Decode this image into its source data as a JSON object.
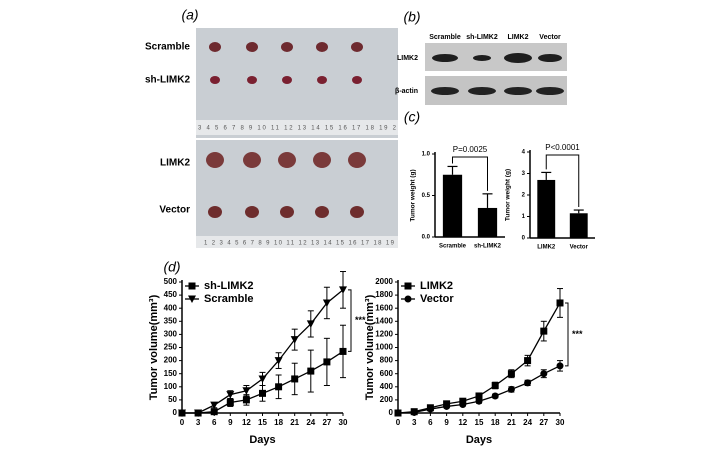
{
  "figure": {
    "panel_labels": [
      "(a)",
      "(b)",
      "(c)",
      "(d)"
    ],
    "photo_rows": [
      "Scramble",
      "sh-LIMK2",
      "LIMK2",
      "Vector"
    ],
    "rulers": [
      "3 4 5 6 7 8 9 10 11 12 13 14 15 16 17 18 19 2",
      "1 2 3 4 5 6 7 8 9 10 11 12 13 14 15 16 17 18 19"
    ],
    "blot_lanes": [
      "Scramble",
      "sh-LIMK2",
      "LIMK2",
      "Vector"
    ],
    "blot_rows": [
      "LIMK2",
      "β-actin"
    ]
  },
  "chart_data": [
    {
      "type": "bar",
      "ylabel": "Tumor weight (g)",
      "categories": [
        "Scramble",
        "sh-LIMK2"
      ],
      "values": [
        0.75,
        0.35
      ],
      "errors": [
        0.1,
        0.17
      ],
      "color": "#000000",
      "ylim": [
        0,
        1
      ],
      "yticks": [
        {
          "value": 0,
          "label": "0.0"
        },
        {
          "value": 0.5,
          "label": "0.5"
        },
        {
          "value": 1,
          "label": "1.0"
        }
      ],
      "annotation": "P=0.0025"
    },
    {
      "type": "bar",
      "ylabel": "Tumor weight (g)",
      "categories": [
        "LIMK2",
        "Vector"
      ],
      "values": [
        2.7,
        1.15
      ],
      "errors": [
        0.35,
        0.15
      ],
      "color": "#000000",
      "ylim": [
        0,
        4
      ],
      "yticks": [
        0,
        1,
        2,
        3,
        4
      ],
      "annotation": "P<0.0001"
    },
    {
      "type": "line",
      "xlabel": "Days",
      "ylabel": "Tumor volume(mm³)",
      "x": [
        0,
        3,
        6,
        9,
        12,
        15,
        18,
        21,
        24,
        27,
        30
      ],
      "xlim": [
        0,
        30
      ],
      "xticks": [
        0,
        3,
        6,
        9,
        12,
        15,
        18,
        21,
        24,
        27,
        30
      ],
      "ylim": [
        0,
        500
      ],
      "yticks": [
        0,
        50,
        100,
        150,
        200,
        250,
        300,
        350,
        400,
        450,
        500
      ],
      "legend": "upper left",
      "annotation": "***",
      "series": [
        {
          "name": "sh-LIMK2",
          "color": "#000000",
          "marker": "square",
          "values": [
            0,
            0,
            5,
            40,
            50,
            75,
            100,
            130,
            160,
            195,
            235
          ],
          "errors": [
            0,
            0,
            5,
            15,
            20,
            30,
            45,
            60,
            80,
            90,
            100
          ]
        },
        {
          "name": "Scramble",
          "color": "#000000",
          "marker": "triangle-down",
          "values": [
            0,
            0,
            30,
            70,
            85,
            130,
            200,
            280,
            340,
            420,
            470
          ],
          "errors": [
            0,
            0,
            10,
            15,
            20,
            25,
            30,
            40,
            50,
            60,
            70
          ]
        }
      ]
    },
    {
      "type": "line",
      "xlabel": "Days",
      "ylabel": "Tumor volume(mm³)",
      "x": [
        0,
        3,
        6,
        9,
        12,
        15,
        18,
        21,
        24,
        27,
        30
      ],
      "xlim": [
        0,
        30
      ],
      "xticks": [
        0,
        3,
        6,
        9,
        12,
        15,
        18,
        21,
        24,
        27,
        30
      ],
      "ylim": [
        0,
        2000
      ],
      "yticks": [
        0,
        200,
        400,
        600,
        800,
        1000,
        1200,
        1400,
        1600,
        1800,
        2000
      ],
      "legend": "upper left",
      "annotation": "***",
      "series": [
        {
          "name": "LIMK2",
          "color": "#000000",
          "marker": "square",
          "values": [
            0,
            20,
            80,
            140,
            180,
            260,
            420,
            600,
            800,
            1250,
            1680
          ],
          "errors": [
            0,
            10,
            20,
            30,
            30,
            40,
            50,
            60,
            80,
            150,
            220
          ]
        },
        {
          "name": "Vector",
          "color": "#000000",
          "marker": "circle",
          "values": [
            0,
            10,
            60,
            100,
            130,
            180,
            260,
            360,
            460,
            600,
            720
          ],
          "errors": [
            0,
            5,
            10,
            20,
            20,
            30,
            30,
            40,
            40,
            60,
            80
          ]
        }
      ]
    }
  ]
}
